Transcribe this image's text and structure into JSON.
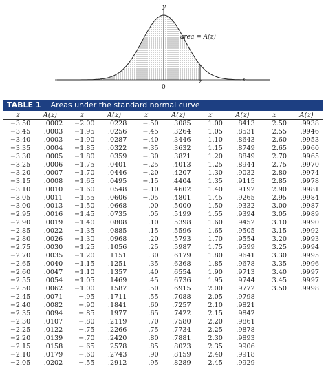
{
  "figure": {
    "y_axis_label": "y",
    "x_axis_label": "x",
    "area_label": "area = A(z)",
    "origin_label": "0",
    "z_marker_label": "z"
  },
  "table": {
    "number": "TABLE 1",
    "title": "Areas under the standard normal curve",
    "headers": [
      "z",
      "A(z)",
      "z",
      "A(z)",
      "z",
      "A(z)",
      "z",
      "A(z)",
      "z",
      "A(z)"
    ],
    "columns": [
      {
        "z": [
          "−3.50",
          "−3.45",
          "−3.40",
          "−3.35",
          "−3.30",
          "−3.25",
          "−3.20",
          "−3.15",
          "−3.10",
          "−3.05",
          "−3.00",
          "−2.95",
          "−2.90",
          "−2.85",
          "−2.80",
          "−2.75",
          "−2.70",
          "−2.65",
          "−2.60",
          "−2.55",
          "−2.50",
          "−2.45",
          "−2.40",
          "−2.35",
          "−2.30",
          "−2.25",
          "−2.20",
          "−2.15",
          "−2.10",
          "−2.05"
        ],
        "a": [
          ".0002",
          ".0003",
          ".0003",
          ".0004",
          ".0005",
          ".0006",
          ".0007",
          ".0008",
          ".0010",
          ".0011",
          ".0013",
          ".0016",
          ".0019",
          ".0022",
          ".0026",
          ".0030",
          ".0035",
          ".0040",
          ".0047",
          ".0054",
          ".0062",
          ".0071",
          ".0082",
          ".0094",
          ".0107",
          ".0122",
          ".0139",
          ".0158",
          ".0179",
          ".0202"
        ]
      },
      {
        "z": [
          "−2.00",
          "−1.95",
          "−1.90",
          "−1.85",
          "−1.80",
          "−1.75",
          "−1.70",
          "−1.65",
          "−1.60",
          "−1.55",
          "−1.50",
          "−1.45",
          "−1.40",
          "−1.35",
          "−1.30",
          "−1.25",
          "−1.20",
          "−1.15",
          "−1.10",
          "−1.05",
          "−1.00",
          "−.95",
          "−.90",
          "−.85",
          "−.80",
          "−.75",
          "−.70",
          "−.65",
          "−.60",
          "−.55"
        ],
        "a": [
          ".0228",
          ".0256",
          ".0287",
          ".0322",
          ".0359",
          ".0401",
          ".0446",
          ".0495",
          ".0548",
          ".0606",
          ".0668",
          ".0735",
          ".0808",
          ".0885",
          ".0968",
          ".1056",
          ".1151",
          ".1251",
          ".1357",
          ".1469",
          ".1587",
          ".1711",
          ".1841",
          ".1977",
          ".2119",
          ".2266",
          ".2420",
          ".2578",
          ".2743",
          ".2912"
        ]
      },
      {
        "z": [
          "−.50",
          "−.45",
          "−.40",
          "−.35",
          "−.30",
          "−.25",
          "−.20",
          "−.15",
          "−.10",
          "−.05",
          ".00",
          ".05",
          ".10",
          ".15",
          ".20",
          ".25",
          ".30",
          ".35",
          ".40",
          ".45",
          ".50",
          ".55",
          ".60",
          ".65",
          ".70",
          ".75",
          ".80",
          ".85",
          ".90",
          ".95"
        ],
        "a": [
          ".3085",
          ".3264",
          ".3446",
          ".3632",
          ".3821",
          ".4013",
          ".4207",
          ".4404",
          ".4602",
          ".4801",
          ".5000",
          ".5199",
          ".5398",
          ".5596",
          ".5793",
          ".5987",
          ".6179",
          ".6368",
          ".6554",
          ".6736",
          ".6915",
          ".7088",
          ".7257",
          ".7422",
          ".7580",
          ".7734",
          ".7881",
          ".8023",
          ".8159",
          ".8289"
        ]
      },
      {
        "z": [
          "1.00",
          "1.05",
          "1.10",
          "1.15",
          "1.20",
          "1.25",
          "1.30",
          "1.35",
          "1.40",
          "1.45",
          "1.50",
          "1.55",
          "1.60",
          "1.65",
          "1.70",
          "1.75",
          "1.80",
          "1.85",
          "1.90",
          "1.95",
          "2.00",
          "2.05",
          "2.10",
          "2.15",
          "2.20",
          "2.25",
          "2.30",
          "2.35",
          "2.40",
          "2.45"
        ],
        "a": [
          ".8413",
          ".8531",
          ".8643",
          ".8749",
          ".8849",
          ".8944",
          ".9032",
          ".9115",
          ".9192",
          ".9265",
          ".9332",
          ".9394",
          ".9452",
          ".9505",
          ".9554",
          ".9599",
          ".9641",
          ".9678",
          ".9713",
          ".9744",
          ".9772",
          ".9798",
          ".9821",
          ".9842",
          ".9861",
          ".9878",
          ".9893",
          ".9906",
          ".9918",
          ".9929"
        ]
      },
      {
        "z": [
          "2.50",
          "2.55",
          "2.60",
          "2.65",
          "2.70",
          "2.75",
          "2.80",
          "2.85",
          "2.90",
          "2.95",
          "3.00",
          "3.05",
          "3.10",
          "3.15",
          "3.20",
          "3.25",
          "3.30",
          "3.35",
          "3.40",
          "3.45",
          "3.50"
        ],
        "a": [
          ".9938",
          ".9946",
          ".9953",
          ".9960",
          ".9965",
          ".9970",
          ".9974",
          ".9978",
          ".9981",
          ".9984",
          ".9987",
          ".9989",
          ".9990",
          ".9992",
          ".9993",
          ".9994",
          ".9995",
          ".9996",
          ".9997",
          ".9997",
          ".9998"
        ]
      }
    ]
  }
}
